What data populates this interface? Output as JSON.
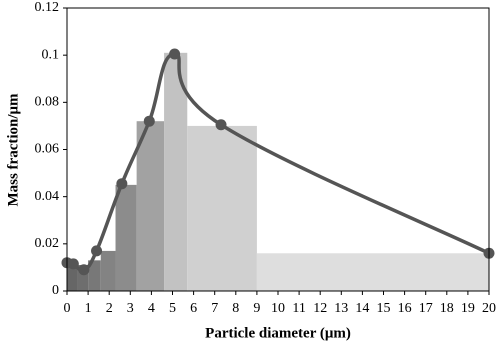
{
  "chart_data": {
    "type": "histogram",
    "xlabel": "Particle diameter (μm)",
    "ylabel": "Mass fraction/μm",
    "bins": [
      0,
      0.5,
      1,
      1.6,
      2.3,
      3.3,
      4.6,
      5.7,
      9,
      20
    ],
    "values": [
      0.012,
      0.011,
      0.013,
      0.017,
      0.045,
      0.072,
      0.101,
      0.07,
      0.016
    ],
    "colors": [
      "#666666",
      "#6e6e6e",
      "#787878",
      "#838383",
      "#8c8c8c",
      "#a2a2a2",
      "#c2c2c2",
      "#d0d0d0",
      "#dedede"
    ],
    "line": {
      "type": "line",
      "color": "#555555",
      "x": [
        0,
        0.3,
        0.8,
        1.4,
        2.6,
        3.9,
        5.1,
        7.3,
        20
      ],
      "values": [
        0.012,
        0.0115,
        0.009,
        0.017,
        0.0455,
        0.072,
        0.1005,
        0.0705,
        0.016
      ]
    },
    "xlim": [
      0,
      20
    ],
    "xticks": [
      0,
      1,
      2,
      3,
      4,
      5,
      6,
      7,
      8,
      9,
      10,
      11,
      12,
      13,
      14,
      15,
      16,
      17,
      18,
      19,
      20
    ],
    "ylim": [
      0,
      0.12
    ],
    "yticks": [
      0,
      0.02,
      0.04,
      0.06,
      0.08,
      0.1,
      0.12
    ],
    "grid": false
  }
}
